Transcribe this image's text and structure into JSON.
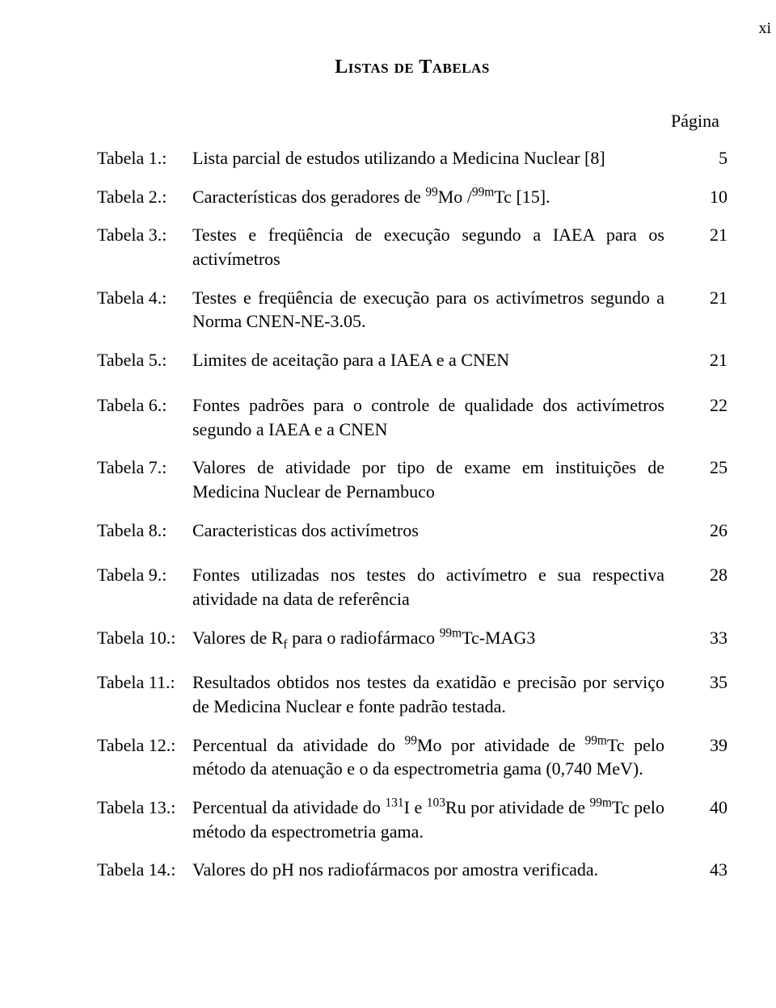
{
  "page_marker": "xi",
  "title": "Listas de Tabelas",
  "page_header": "Página",
  "entries": [
    {
      "label": "Tabela 1.:",
      "desc": "Lista parcial de estudos utilizando a Medicina Nuclear [8]",
      "page": "5"
    },
    {
      "label": "Tabela 2.:",
      "desc": "Características dos geradores de <sup>99</sup>Mo /<sup>99m</sup>Tc [15].",
      "page": "10"
    },
    {
      "label": "Tabela 3.:",
      "desc": "Testes e freqüência de execução segundo a IAEA para os activímetros",
      "page": "21"
    },
    {
      "label": "Tabela 4.:",
      "desc": "Testes e freqüência de execução para os activímetros segundo a Norma CNEN-NE-3.05.",
      "page": "21"
    },
    {
      "label": "Tabela 5.:",
      "desc": "Limites de aceitação para a IAEA e a CNEN",
      "page": "21"
    },
    {
      "label": "Tabela 6.:",
      "desc": "Fontes padrões para o controle de qualidade dos activímetros segundo a IAEA e a CNEN",
      "page": "22"
    },
    {
      "label": "Tabela 7.:",
      "desc": "Valores de atividade por tipo de exame em instituições de Medicina Nuclear de Pernambuco",
      "page": "25"
    },
    {
      "label": "Tabela 8.:",
      "desc": "Caracteristicas dos activímetros",
      "page": "26"
    },
    {
      "label": "Tabela 9.:",
      "desc": "Fontes utilizadas nos testes do activímetro e sua respectiva atividade na data de referência",
      "page": "28"
    },
    {
      "label": "Tabela 10.:",
      "desc": "Valores de R<sub>f</sub> para o radiofármaco <sup>99m</sup>Tc-MAG3",
      "page": "33"
    },
    {
      "label": "Tabela 11.:",
      "desc": "Resultados obtidos nos testes da exatidão e precisão por serviço de Medicina Nuclear e fonte padrão testada.",
      "page": "35"
    },
    {
      "label": "Tabela 12.:",
      "desc": "Percentual da atividade do <sup>99</sup>Mo por atividade de <sup>99m</sup>Tc pelo método da atenuação e o da espectrometria gama (0,740 MeV).",
      "page": "39"
    },
    {
      "label": "Tabela 13.:",
      "desc": "Percentual da atividade do <sup>131</sup>I e <sup>103</sup>Ru por atividade de <sup>99m</sup>Tc pelo método da espectrometria gama.",
      "page": "40"
    },
    {
      "label": "Tabela 14.:",
      "desc": "Valores do pH nos radiofármacos por amostra verificada.",
      "page": "43"
    }
  ],
  "gap_after": [
    4,
    7,
    9
  ],
  "colors": {
    "text": "#000000",
    "background": "#ffffff"
  },
  "font": {
    "family": "Times New Roman",
    "body_size_pt": 16,
    "title_size_pt": 18
  }
}
